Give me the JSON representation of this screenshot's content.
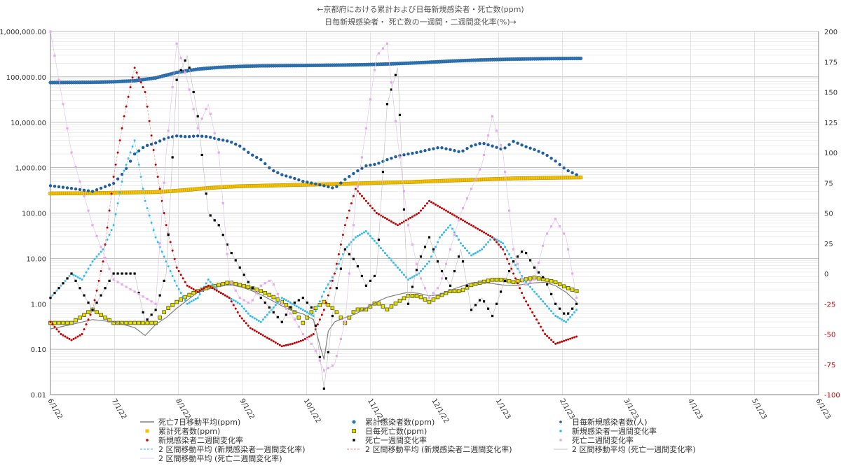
{
  "chart_data": {
    "type": "scatter",
    "title": "←京都府における累計および日毎新規感染者・死亡数(ppm)",
    "subtitle": "日毎新規感染者・ 死亡数の一週間・二週間変化率(%)→",
    "x_ticks": [
      "6/1/22",
      "7/1/22",
      "8/1/22",
      "9/1/22",
      "10/1/22",
      "11/1/22",
      "12/1/22",
      "1/1/23",
      "2/1/23",
      "3/1/23",
      "4/1/23",
      "5/1/23",
      "6/1/23"
    ],
    "y_left_ticks": [
      "1,000,000.00",
      "100,000.00",
      "10,000.00",
      "1,000.00",
      "100.00",
      "10.00",
      "1.00",
      "0.10",
      "0.01"
    ],
    "y_right_ticks": [
      "200",
      "175",
      "150",
      "125",
      "100",
      "75",
      "50",
      "25",
      "0",
      "-25",
      "-50",
      "-75",
      "-100"
    ],
    "y_left_scale": "log",
    "y_left_range": [
      0.01,
      1000000
    ],
    "y_right_range": [
      -100,
      200
    ],
    "grid": true,
    "legend_position": "bottom",
    "legend": [
      {
        "label": "死亡7日移動平均(ppm)",
        "color": "#808080",
        "marker": "line"
      },
      {
        "label": "累計感染者数(ppm)",
        "color": "#2e75b6",
        "marker": "circle"
      },
      {
        "label": "日毎新規感染者数(人)",
        "color": "#1f5f9e",
        "marker": "dot"
      },
      {
        "label": "累計死者数(ppm)",
        "color": "#f2c300",
        "marker": "square"
      },
      {
        "label": "日毎死亡数(ppm)",
        "color": "#e8e000",
        "marker": "square-dark"
      },
      {
        "label": "新規感染者一週間変化率",
        "color": "#33bbee",
        "marker": "dot"
      },
      {
        "label": "新規感染者二週間変化率",
        "color": "#c00000",
        "marker": "dot"
      },
      {
        "label": "死亡一週間変化率",
        "color": "#000000",
        "marker": "square-small"
      },
      {
        "label": "死亡二週間変化率",
        "color": "#e8a8f0",
        "marker": "square-small"
      },
      {
        "label": "2 区間移動平均 (新規感染者一週間変化率)",
        "color": "#33bbee",
        "marker": "dash"
      },
      {
        "label": "2 区間移動平均 (新規感染者二週間変化率)",
        "color": "#ff8080",
        "marker": "dash"
      },
      {
        "label": "2 区間移動平均 (死亡一週間変化率)",
        "color": "#b0b0b0",
        "marker": "thin-line"
      },
      {
        "label": "2 区間移動平均 (死亡二週間変化率)",
        "color": "#d8c0e8",
        "marker": "thin-line"
      }
    ],
    "x_day_range": [
      0,
      365
    ],
    "data_end_day": 252,
    "series": [
      {
        "name": "累計感染者数(ppm)",
        "axis": "left",
        "x": [
          0,
          20,
          30,
          40,
          50,
          60,
          70,
          80,
          90,
          100,
          110,
          120,
          130,
          140,
          150,
          160,
          170,
          180,
          190,
          200,
          210,
          220,
          230,
          240,
          250,
          252
        ],
        "y": [
          75000,
          76000,
          78000,
          82000,
          95000,
          125000,
          148000,
          162000,
          170000,
          175000,
          177000,
          178000,
          180000,
          182000,
          186000,
          192000,
          200000,
          210000,
          222000,
          232000,
          240000,
          246000,
          250000,
          253000,
          255000,
          255000
        ]
      },
      {
        "name": "累計死者数(ppm)",
        "axis": "left",
        "x": [
          0,
          20,
          30,
          40,
          50,
          60,
          70,
          80,
          90,
          100,
          110,
          120,
          130,
          140,
          150,
          160,
          170,
          180,
          190,
          200,
          210,
          220,
          230,
          240,
          250,
          252
        ],
        "y": [
          270,
          275,
          280,
          285,
          290,
          310,
          340,
          370,
          390,
          400,
          410,
          420,
          430,
          440,
          455,
          470,
          480,
          500,
          520,
          540,
          560,
          580,
          590,
          600,
          610,
          610
        ]
      },
      {
        "name": "日毎新規感染者数(人)",
        "axis": "left",
        "x": [
          0,
          10,
          20,
          30,
          35,
          40,
          45,
          50,
          55,
          60,
          65,
          70,
          75,
          80,
          85,
          90,
          95,
          100,
          105,
          110,
          115,
          120,
          125,
          130,
          135,
          140,
          145,
          150,
          155,
          160,
          165,
          170,
          175,
          180,
          185,
          190,
          195,
          200,
          205,
          210,
          215,
          220,
          225,
          230,
          235,
          240,
          245,
          250
        ],
        "y": [
          400,
          350,
          300,
          450,
          800,
          2000,
          3000,
          3500,
          4500,
          5000,
          4800,
          5000,
          4800,
          4200,
          3800,
          3000,
          2000,
          1500,
          900,
          700,
          600,
          500,
          450,
          400,
          350,
          550,
          800,
          1100,
          1200,
          1500,
          1800,
          2000,
          2200,
          2500,
          2800,
          2500,
          2200,
          3000,
          3500,
          3000,
          2500,
          3800,
          3000,
          2500,
          2000,
          1400,
          900,
          700
        ]
      },
      {
        "name": "日毎死亡数(ppm)",
        "axis": "left",
        "x": [
          0,
          10,
          20,
          30,
          40,
          50,
          55,
          60,
          65,
          70,
          75,
          80,
          85,
          90,
          95,
          100,
          105,
          110,
          115,
          120,
          125,
          130,
          135,
          140,
          145,
          150,
          155,
          160,
          165,
          170,
          175,
          180,
          185,
          190,
          195,
          200,
          205,
          210,
          215,
          220,
          225,
          230,
          235,
          240,
          245,
          250
        ],
        "y": [
          0.38,
          0.38,
          0.75,
          0.38,
          0.38,
          0.38,
          0.75,
          1.1,
          1.5,
          1.9,
          2.3,
          2.6,
          3.0,
          2.6,
          2.3,
          1.9,
          1.5,
          1.1,
          0.75,
          0.38,
          0.75,
          1.1,
          0.75,
          0.38,
          0.75,
          0.75,
          1.1,
          0.75,
          1.1,
          1.5,
          1.5,
          1.1,
          1.5,
          1.9,
          1.9,
          2.6,
          3.0,
          3.4,
          3.4,
          3.0,
          3.4,
          3.8,
          3.4,
          3.0,
          2.3,
          1.9
        ]
      },
      {
        "name": "死亡7日移動平均(ppm)",
        "axis": "left",
        "x": [
          0,
          10,
          20,
          30,
          40,
          45,
          50,
          55,
          60,
          65,
          70,
          75,
          80,
          85,
          90,
          95,
          100,
          105,
          110,
          115,
          120,
          125,
          128,
          130,
          132,
          135,
          140,
          145,
          150,
          155,
          160,
          165,
          170,
          175,
          180,
          185,
          190,
          195,
          200,
          205,
          210,
          215,
          220,
          225,
          230,
          235,
          240,
          245,
          250
        ],
        "y": [
          0.28,
          0.35,
          0.45,
          0.4,
          0.3,
          0.2,
          0.35,
          0.5,
          0.8,
          1.2,
          1.8,
          2.1,
          2.4,
          2.6,
          2.4,
          2.0,
          1.6,
          1.2,
          0.9,
          0.7,
          0.6,
          0.45,
          0.12,
          0.06,
          0.25,
          0.4,
          0.5,
          0.6,
          0.8,
          1.1,
          1.4,
          1.6,
          1.8,
          1.7,
          1.5,
          1.6,
          2.0,
          2.4,
          2.9,
          3.0,
          2.8,
          2.6,
          2.5,
          2.7,
          2.9,
          3.0,
          2.5,
          1.8,
          1.1
        ]
      },
      {
        "name": "新規感染者一週間変化率",
        "axis": "right",
        "x": [
          0,
          5,
          10,
          15,
          20,
          25,
          30,
          35,
          40,
          45,
          50,
          55,
          60,
          65,
          70,
          75,
          80,
          85,
          90,
          95,
          100,
          105,
          110,
          115,
          120,
          125,
          130,
          135,
          140,
          145,
          150,
          155,
          160,
          165,
          170,
          175,
          180,
          185,
          190,
          195,
          200,
          205,
          210,
          215,
          220,
          225,
          230,
          235,
          240,
          245,
          250
        ],
        "y": [
          -20,
          -10,
          0,
          -5,
          10,
          20,
          40,
          85,
          110,
          60,
          30,
          10,
          -10,
          -25,
          -20,
          -5,
          -15,
          -20,
          -25,
          -35,
          -40,
          -30,
          -20,
          -25,
          -30,
          -35,
          -15,
          0,
          20,
          30,
          35,
          25,
          15,
          5,
          -5,
          0,
          10,
          30,
          40,
          25,
          15,
          20,
          30,
          25,
          10,
          -5,
          -15,
          -25,
          -35,
          -40,
          -30
        ]
      },
      {
        "name": "新規感染者二週間変化率",
        "axis": "right",
        "x": [
          0,
          5,
          10,
          15,
          20,
          25,
          30,
          35,
          40,
          45,
          50,
          55,
          60,
          65,
          70,
          75,
          80,
          85,
          90,
          95,
          100,
          105,
          110,
          115,
          120,
          125,
          130,
          135,
          140,
          145,
          150,
          155,
          160,
          165,
          170,
          175,
          180,
          185,
          190,
          195,
          200,
          205,
          210,
          215,
          220,
          225,
          230,
          235,
          240,
          245,
          250
        ],
        "y": [
          -40,
          -50,
          -55,
          -50,
          -30,
          10,
          80,
          130,
          170,
          150,
          90,
          40,
          5,
          -10,
          -15,
          -10,
          -15,
          -20,
          -35,
          -45,
          -50,
          -55,
          -60,
          -58,
          -55,
          -50,
          -30,
          0,
          40,
          70,
          60,
          50,
          45,
          40,
          45,
          50,
          60,
          55,
          50,
          45,
          40,
          35,
          30,
          20,
          0,
          -20,
          -35,
          -50,
          -58,
          -55,
          -52
        ]
      },
      {
        "name": "死亡一週間変化率",
        "axis": "right",
        "x": [
          0,
          10,
          20,
          30,
          40,
          45,
          50,
          55,
          60,
          65,
          70,
          75,
          80,
          85,
          90,
          95,
          100,
          105,
          110,
          115,
          120,
          125,
          130,
          135,
          140,
          145,
          150,
          155,
          160,
          165,
          170,
          175,
          180,
          185,
          190,
          195,
          200,
          205,
          210,
          215,
          220,
          225,
          230,
          235,
          240,
          245,
          250
        ],
        "y": [
          -20,
          0,
          -30,
          0,
          0,
          -40,
          -30,
          0,
          160,
          180,
          130,
          50,
          40,
          20,
          5,
          -10,
          -20,
          -30,
          -40,
          -25,
          -20,
          -30,
          -95,
          -20,
          20,
          10,
          -10,
          0,
          140,
          170,
          -25,
          10,
          30,
          5,
          -10,
          20,
          -30,
          -20,
          -35,
          -10,
          10,
          20,
          5,
          -5,
          -25,
          -35,
          -25
        ]
      },
      {
        "name": "死亡二週間変化率",
        "axis": "right",
        "x": [
          0,
          10,
          20,
          30,
          40,
          45,
          50,
          55,
          60,
          65,
          70,
          75,
          80,
          85,
          90,
          95,
          100,
          105,
          110,
          115,
          120,
          125,
          130,
          135,
          140,
          145,
          150,
          155,
          160,
          165,
          170,
          175,
          180,
          185,
          190,
          195,
          200,
          205,
          210,
          215,
          220,
          225,
          230,
          235,
          240,
          245,
          250
        ],
        "y": [
          200,
          100,
          40,
          -5,
          -15,
          -20,
          -25,
          100,
          190,
          160,
          120,
          140,
          100,
          -5,
          -20,
          -25,
          -10,
          -5,
          -25,
          -35,
          -50,
          -60,
          -80,
          -75,
          -40,
          60,
          120,
          180,
          190,
          110,
          40,
          0,
          -20,
          -10,
          20,
          50,
          70,
          90,
          130,
          100,
          20,
          -10,
          -5,
          30,
          45,
          30,
          -20
        ]
      }
    ]
  }
}
